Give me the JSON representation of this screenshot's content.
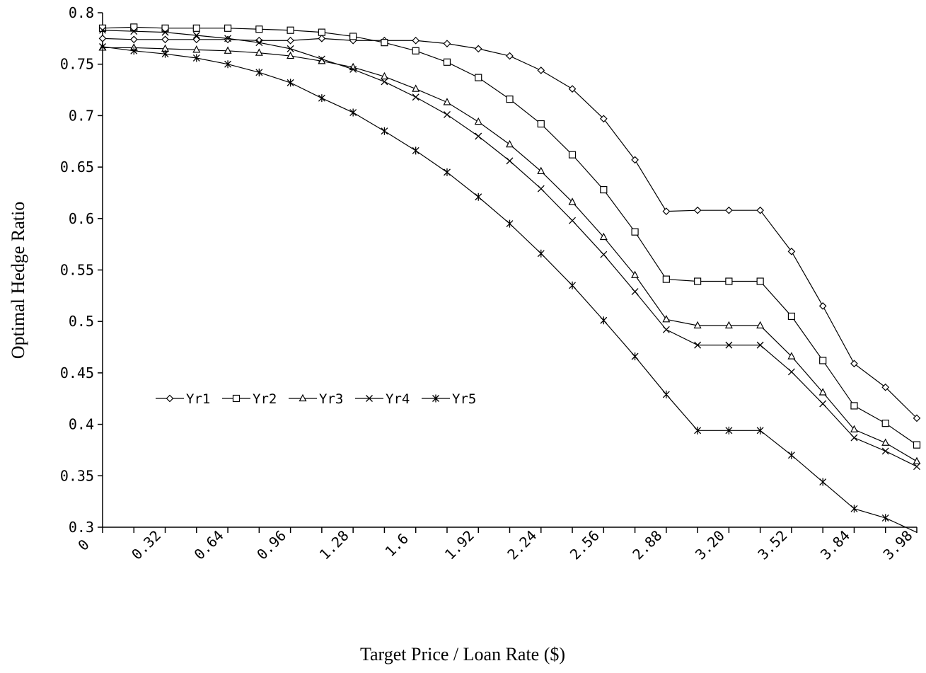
{
  "chart_data": {
    "type": "line",
    "xlabel": "Target Price / Loan Rate ($)",
    "ylabel": "Optimal Hedge Ratio",
    "ylim": [
      0.3,
      0.8
    ],
    "yticks": [
      "0.3",
      "0.35",
      "0.4",
      "0.45",
      "0.5",
      "0.55",
      "0.6",
      "0.65",
      "0.7",
      "0.75",
      "0.8"
    ],
    "xtick_labels": [
      "0",
      "0.32",
      "0.64",
      "0.96",
      "1.28",
      "1.6",
      "1.92",
      "2.24",
      "2.56",
      "2.88",
      "3.20",
      "3.52",
      "3.84",
      "3.98"
    ],
    "legend_position": "left-middle",
    "grid": false,
    "series": [
      {
        "name": "Yr1",
        "marker": "diamond",
        "values": [
          0.775,
          0.774,
          0.774,
          0.774,
          0.774,
          0.773,
          0.773,
          0.775,
          0.773,
          0.773,
          0.773,
          0.77,
          0.765,
          0.758,
          0.744,
          0.726,
          0.697,
          0.657,
          0.607,
          0.608,
          0.608,
          0.608,
          0.568,
          0.515,
          0.459,
          0.436,
          0.406
        ]
      },
      {
        "name": "Yr2",
        "marker": "square",
        "values": [
          0.785,
          0.786,
          0.785,
          0.785,
          0.785,
          0.784,
          0.783,
          0.781,
          0.777,
          0.771,
          0.763,
          0.752,
          0.737,
          0.716,
          0.692,
          0.662,
          0.628,
          0.587,
          0.541,
          0.539,
          0.539,
          0.539,
          0.505,
          0.462,
          0.418,
          0.401,
          0.38
        ]
      },
      {
        "name": "Yr3",
        "marker": "triangle",
        "values": [
          0.766,
          0.766,
          0.765,
          0.764,
          0.763,
          0.761,
          0.758,
          0.753,
          0.747,
          0.738,
          0.726,
          0.713,
          0.694,
          0.672,
          0.646,
          0.616,
          0.582,
          0.545,
          0.502,
          0.496,
          0.496,
          0.496,
          0.466,
          0.431,
          0.395,
          0.382,
          0.364
        ]
      },
      {
        "name": "Yr4",
        "marker": "x",
        "values": [
          0.783,
          0.782,
          0.781,
          0.778,
          0.775,
          0.771,
          0.765,
          0.755,
          0.745,
          0.733,
          0.718,
          0.701,
          0.68,
          0.656,
          0.629,
          0.598,
          0.565,
          0.529,
          0.492,
          0.477,
          0.477,
          0.477,
          0.451,
          0.42,
          0.387,
          0.374,
          0.359
        ]
      },
      {
        "name": "Yr5",
        "marker": "star",
        "values": [
          0.767,
          0.763,
          0.76,
          0.756,
          0.75,
          0.742,
          0.732,
          0.717,
          0.703,
          0.685,
          0.666,
          0.645,
          0.621,
          0.595,
          0.566,
          0.535,
          0.501,
          0.466,
          0.429,
          0.394,
          0.394,
          0.394,
          0.37,
          0.344,
          0.318,
          0.309,
          0.295
        ]
      }
    ]
  }
}
